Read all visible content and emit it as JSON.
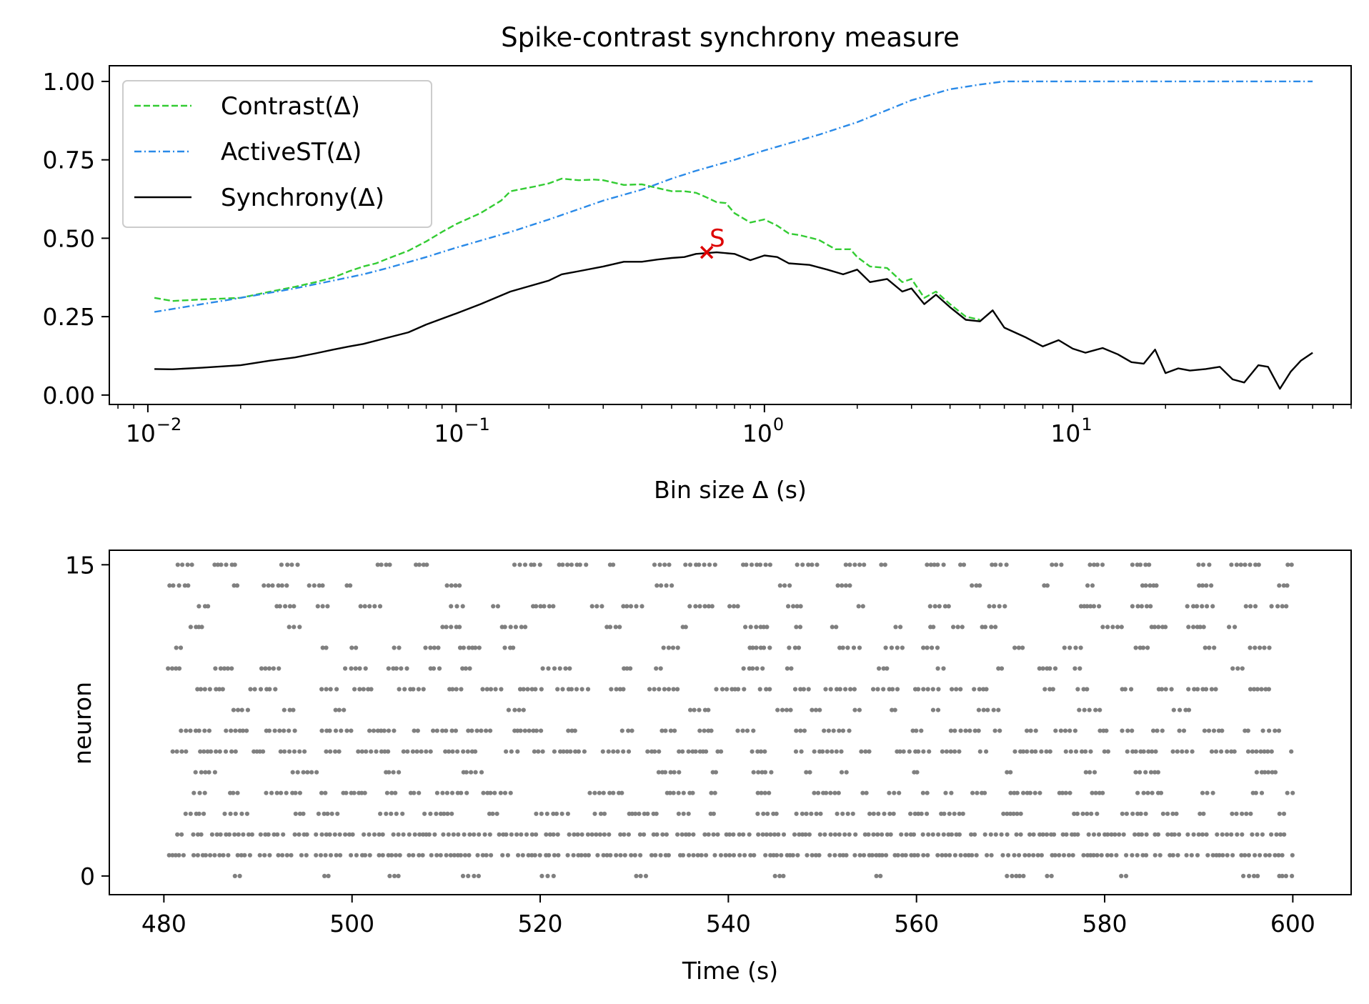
{
  "chart_data": [
    {
      "type": "line",
      "title": "Spike-contrast synchrony measure",
      "xlabel": "Bin size Δ (s)",
      "ylabel": "",
      "xscale": "log",
      "xlim": [
        0.0075,
        80
      ],
      "ylim": [
        -0.03,
        1.05
      ],
      "yticks": [
        0.0,
        0.25,
        0.5,
        0.75,
        1.0
      ],
      "ytick_labels": [
        "0.00",
        "0.25",
        "0.50",
        "0.75",
        "1.00"
      ],
      "xticks": [
        0.01,
        0.1,
        1,
        10
      ],
      "xtick_labels": [
        "10",
        "10",
        "10",
        "10"
      ],
      "xtick_exponents": [
        "−2",
        "−1",
        "0",
        "1"
      ],
      "grid": false,
      "legend_position": "top-left",
      "series": [
        {
          "name": "Contrast(Δ)",
          "color": "#33cc33",
          "style": "dashed",
          "x": [
            0.0105,
            0.012,
            0.015,
            0.02,
            0.025,
            0.03,
            0.035,
            0.04,
            0.045,
            0.05,
            0.055,
            0.06,
            0.07,
            0.08,
            0.09,
            0.1,
            0.12,
            0.14,
            0.15,
            0.18,
            0.2,
            0.22,
            0.25,
            0.28,
            0.3,
            0.35,
            0.4,
            0.45,
            0.5,
            0.55,
            0.6,
            0.65,
            0.7,
            0.75,
            0.8,
            0.9,
            1.0,
            1.1,
            1.2,
            1.3,
            1.5,
            1.7,
            1.9,
            2.0,
            2.2,
            2.5,
            2.8,
            3.0,
            3.3,
            3.6,
            4.0,
            4.5,
            5.0
          ],
          "y": [
            0.31,
            0.3,
            0.305,
            0.31,
            0.33,
            0.345,
            0.36,
            0.375,
            0.395,
            0.41,
            0.42,
            0.435,
            0.46,
            0.49,
            0.52,
            0.545,
            0.58,
            0.62,
            0.65,
            0.665,
            0.675,
            0.69,
            0.685,
            0.687,
            0.685,
            0.67,
            0.672,
            0.66,
            0.65,
            0.65,
            0.645,
            0.63,
            0.615,
            0.612,
            0.58,
            0.55,
            0.56,
            0.54,
            0.515,
            0.51,
            0.495,
            0.465,
            0.465,
            0.44,
            0.41,
            0.405,
            0.36,
            0.37,
            0.31,
            0.33,
            0.29,
            0.25,
            0.24
          ]
        },
        {
          "name": "ActiveST(Δ)",
          "color": "#2a8ae8",
          "style": "dashdot",
          "x": [
            0.0105,
            0.015,
            0.02,
            0.03,
            0.04,
            0.05,
            0.06,
            0.08,
            0.1,
            0.15,
            0.2,
            0.3,
            0.4,
            0.5,
            0.6,
            0.8,
            1.0,
            1.5,
            2.0,
            3.0,
            4.0,
            5.0,
            6.0,
            7.0,
            10,
            20,
            40,
            60
          ],
          "y": [
            0.265,
            0.29,
            0.31,
            0.34,
            0.365,
            0.385,
            0.405,
            0.44,
            0.47,
            0.52,
            0.56,
            0.62,
            0.655,
            0.69,
            0.715,
            0.75,
            0.78,
            0.83,
            0.87,
            0.94,
            0.975,
            0.99,
            1.0,
            1.0,
            1.0,
            1.0,
            1.0,
            1.0
          ]
        },
        {
          "name": "Synchrony(Δ)",
          "color": "#000000",
          "style": "solid",
          "x": [
            0.0105,
            0.012,
            0.015,
            0.02,
            0.025,
            0.03,
            0.035,
            0.04,
            0.045,
            0.05,
            0.06,
            0.07,
            0.08,
            0.1,
            0.12,
            0.15,
            0.2,
            0.22,
            0.25,
            0.3,
            0.35,
            0.4,
            0.45,
            0.5,
            0.55,
            0.6,
            0.7,
            0.8,
            0.9,
            1.0,
            1.1,
            1.2,
            1.4,
            1.6,
            1.8,
            2.0,
            2.2,
            2.5,
            2.8,
            3.0,
            3.3,
            3.6,
            4.0,
            4.5,
            5.0,
            5.5,
            6.0,
            7.0,
            8.0,
            9.0,
            10.0,
            11.0,
            12.5,
            14.0,
            15.5,
            17.0,
            18.5,
            20.0,
            22.0,
            24.0,
            27.0,
            30.0,
            33.0,
            36.0,
            40.0,
            43.0,
            47.0,
            51.0,
            55.0,
            60.0
          ],
          "y": [
            0.083,
            0.082,
            0.087,
            0.095,
            0.11,
            0.12,
            0.133,
            0.145,
            0.155,
            0.163,
            0.183,
            0.2,
            0.225,
            0.26,
            0.29,
            0.33,
            0.365,
            0.385,
            0.395,
            0.41,
            0.425,
            0.425,
            0.432,
            0.437,
            0.44,
            0.45,
            0.455,
            0.45,
            0.43,
            0.445,
            0.44,
            0.42,
            0.415,
            0.4,
            0.385,
            0.4,
            0.36,
            0.37,
            0.33,
            0.34,
            0.29,
            0.32,
            0.28,
            0.24,
            0.235,
            0.27,
            0.215,
            0.185,
            0.155,
            0.175,
            0.148,
            0.135,
            0.15,
            0.13,
            0.105,
            0.1,
            0.145,
            0.07,
            0.085,
            0.078,
            0.083,
            0.09,
            0.05,
            0.04,
            0.095,
            0.09,
            0.02,
            0.075,
            0.11,
            0.135
          ]
        }
      ],
      "annotations": [
        {
          "text": "S",
          "x": 0.65,
          "y": 0.455,
          "color": "#dd0000",
          "marker": "x"
        }
      ]
    },
    {
      "type": "scatter",
      "title": "",
      "xlabel": "Time (s)",
      "ylabel": "neuron",
      "xlim": [
        474.2,
        606.2
      ],
      "ylim": [
        -0.9,
        15.7
      ],
      "xticks": [
        480,
        500,
        520,
        540,
        560,
        580,
        600
      ],
      "yticks": [
        0,
        15
      ],
      "grid": false,
      "color": "#808080",
      "raster": [
        {
          "neuron": 0,
          "density": 0.18,
          "seed": 11
        },
        {
          "neuron": 1,
          "density": 1.0,
          "seed": 12
        },
        {
          "neuron": 2,
          "density": 1.0,
          "seed": 13
        },
        {
          "neuron": 3,
          "density": 0.55,
          "seed": 14
        },
        {
          "neuron": 4,
          "density": 0.6,
          "seed": 15
        },
        {
          "neuron": 5,
          "density": 0.25,
          "seed": 16
        },
        {
          "neuron": 6,
          "density": 0.72,
          "seed": 17
        },
        {
          "neuron": 7,
          "density": 0.6,
          "seed": 18
        },
        {
          "neuron": 8,
          "density": 0.2,
          "seed": 19
        },
        {
          "neuron": 9,
          "density": 0.58,
          "seed": 20
        },
        {
          "neuron": 10,
          "density": 0.3,
          "seed": 21
        },
        {
          "neuron": 11,
          "density": 0.28,
          "seed": 22
        },
        {
          "neuron": 12,
          "density": 0.22,
          "seed": 23
        },
        {
          "neuron": 13,
          "density": 0.4,
          "seed": 24
        },
        {
          "neuron": 14,
          "density": 0.24,
          "seed": 25
        },
        {
          "neuron": 15,
          "density": 0.5,
          "seed": 26
        }
      ]
    }
  ]
}
